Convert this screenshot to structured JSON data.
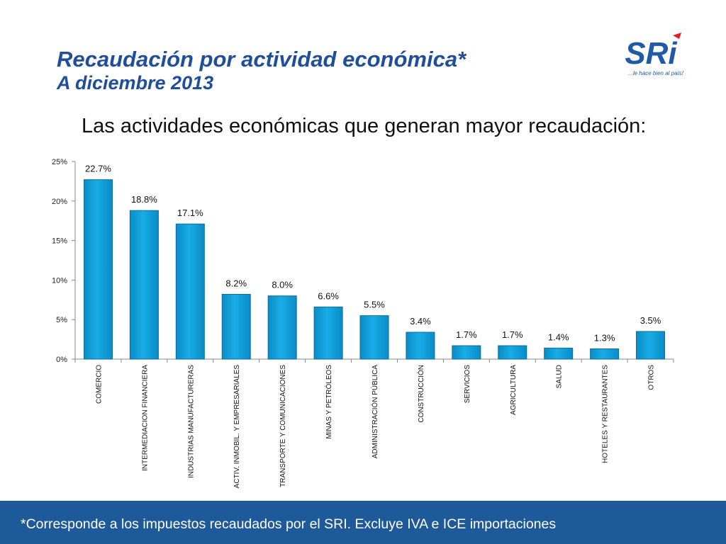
{
  "header": {
    "title": "Recaudación por actividad económica*",
    "subtitle": "A diciembre 2013",
    "logo_text": "SRi",
    "logo_tagline": "...le hace bien al país!"
  },
  "main": {
    "heading": "Las actividades económicas que generan mayor recaudación:"
  },
  "footer": {
    "note": "*Corresponde a los impuestos recaudados por el SRI. Excluye IVA e ICE importaciones"
  },
  "colors": {
    "bar": "#0aa0dc",
    "bar_edge": "#0d6e9e",
    "title": "#1f4e9b",
    "footer_bg": "#1e5a9a"
  },
  "chart_data": {
    "type": "bar",
    "categories": [
      "COMERCIO",
      "INTERMEDIACION FINANCIERA",
      "INDUSTRIAS MANUFACTURERAS",
      "ACTIV. INMOBIL. Y EMPRESARIALES",
      "TRANSPORTE Y COMUNICACIONES",
      "MINAS Y PETRÓLEOS",
      "ADMINISTRACIÓN PÚBLICA",
      "CONSTRUCCIÓN",
      "SERVICIOS",
      "AGRICULTURA",
      "SALUD",
      "HOTELES Y RESTAURANTES",
      "OTROS"
    ],
    "values": [
      22.7,
      18.8,
      17.1,
      8.2,
      8.0,
      6.6,
      5.5,
      3.4,
      1.7,
      1.7,
      1.4,
      1.3,
      3.5
    ],
    "value_labels": [
      "22.7%",
      "18.8%",
      "17.1%",
      "8.2%",
      "8.0%",
      "6.6%",
      "5.5%",
      "3.4%",
      "1.7%",
      "1.7%",
      "1.4%",
      "1.3%",
      "3.5%"
    ],
    "yticks": [
      0,
      5,
      10,
      15,
      20,
      25
    ],
    "ytick_labels": [
      "0%",
      "5%",
      "10%",
      "15%",
      "20%",
      "25%"
    ],
    "ylim": [
      0,
      25
    ],
    "grid": false,
    "legend": "none"
  }
}
